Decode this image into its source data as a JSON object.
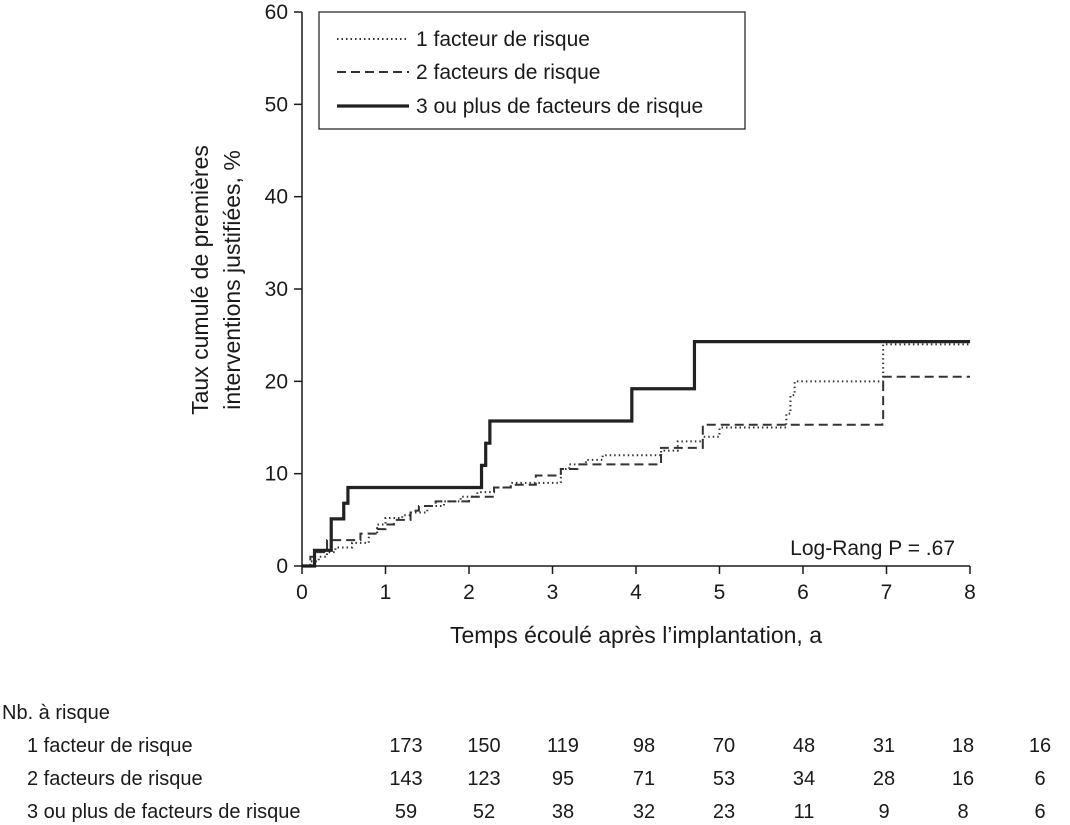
{
  "chart_data": {
    "type": "line",
    "step": true,
    "title": "",
    "xlabel": "Temps écoulé après l’implantation, a",
    "ylabel_lines": [
      "Taux cumulé de premières",
      "interventions justifiées, %"
    ],
    "xlim": [
      0,
      8
    ],
    "ylim": [
      0,
      60
    ],
    "xticks": [
      0,
      1,
      2,
      3,
      4,
      5,
      6,
      7,
      8
    ],
    "yticks": [
      0,
      10,
      20,
      30,
      40,
      50,
      60
    ],
    "grid": false,
    "legend_position": "top-left",
    "series": [
      {
        "name": "1 facteur de risque",
        "style": "dotted",
        "color": "#333333",
        "x": [
          0,
          0.1,
          0.2,
          0.3,
          0.4,
          0.6,
          0.8,
          0.9,
          1.0,
          1.2,
          1.3,
          1.5,
          1.7,
          1.9,
          2.1,
          2.3,
          2.5,
          2.8,
          3.1,
          3.2,
          3.4,
          3.6,
          4.3,
          4.5,
          4.8,
          5.0,
          5.8,
          5.85,
          5.9,
          6.95,
          6.96,
          8.0
        ],
        "y": [
          0,
          0.5,
          1.0,
          1.5,
          2.0,
          2.5,
          3.5,
          4.5,
          5.2,
          5.5,
          5.8,
          6.5,
          7.0,
          7.5,
          8.0,
          8.5,
          9.0,
          9.0,
          10.5,
          11.0,
          11.5,
          12.0,
          12.5,
          13.5,
          14.0,
          15.0,
          16.5,
          18.5,
          20.0,
          20.0,
          24.0,
          24.0
        ]
      },
      {
        "name": "2 facteurs de risque",
        "style": "dashed",
        "color": "#333333",
        "x": [
          0,
          0.1,
          0.15,
          0.3,
          0.6,
          0.7,
          0.9,
          1.0,
          1.1,
          1.3,
          1.4,
          1.6,
          2.0,
          2.3,
          2.5,
          2.8,
          3.1,
          3.3,
          4.3,
          4.8,
          6.95,
          6.96,
          8.0
        ],
        "y": [
          0,
          1.0,
          1.5,
          2.8,
          2.8,
          3.5,
          4.0,
          4.5,
          5.0,
          6.0,
          6.5,
          7.0,
          7.5,
          8.5,
          8.8,
          9.8,
          10.5,
          11.0,
          12.8,
          15.3,
          15.5,
          20.5,
          20.5
        ]
      },
      {
        "name": "3 ou plus de facteurs de risque",
        "style": "solid",
        "color": "#222222",
        "x": [
          0,
          0.15,
          0.35,
          0.5,
          0.55,
          2.15,
          2.2,
          2.25,
          2.3,
          3.95,
          4.7,
          8.0
        ],
        "y": [
          0,
          1.7,
          5.1,
          6.8,
          8.5,
          10.9,
          13.3,
          15.7,
          15.7,
          19.2,
          24.3,
          24.3
        ]
      }
    ],
    "annotation": "Log-Rang  P = .67",
    "risk_table": {
      "title": "Nb. à risque",
      "rows": [
        {
          "label": "1 facteur de risque",
          "values": [
            "173",
            "150",
            "119",
            "98",
            "70",
            "48",
            "31",
            "18",
            "16"
          ]
        },
        {
          "label": "2 facteurs de risque",
          "values": [
            "143",
            "123",
            "95",
            "71",
            "53",
            "34",
            "28",
            "16",
            "6"
          ]
        },
        {
          "label": "3 ou plus de facteurs de risque",
          "values": [
            "59",
            "52",
            "38",
            "32",
            "23",
            "11",
            "9",
            "8",
            "6"
          ]
        }
      ]
    }
  }
}
